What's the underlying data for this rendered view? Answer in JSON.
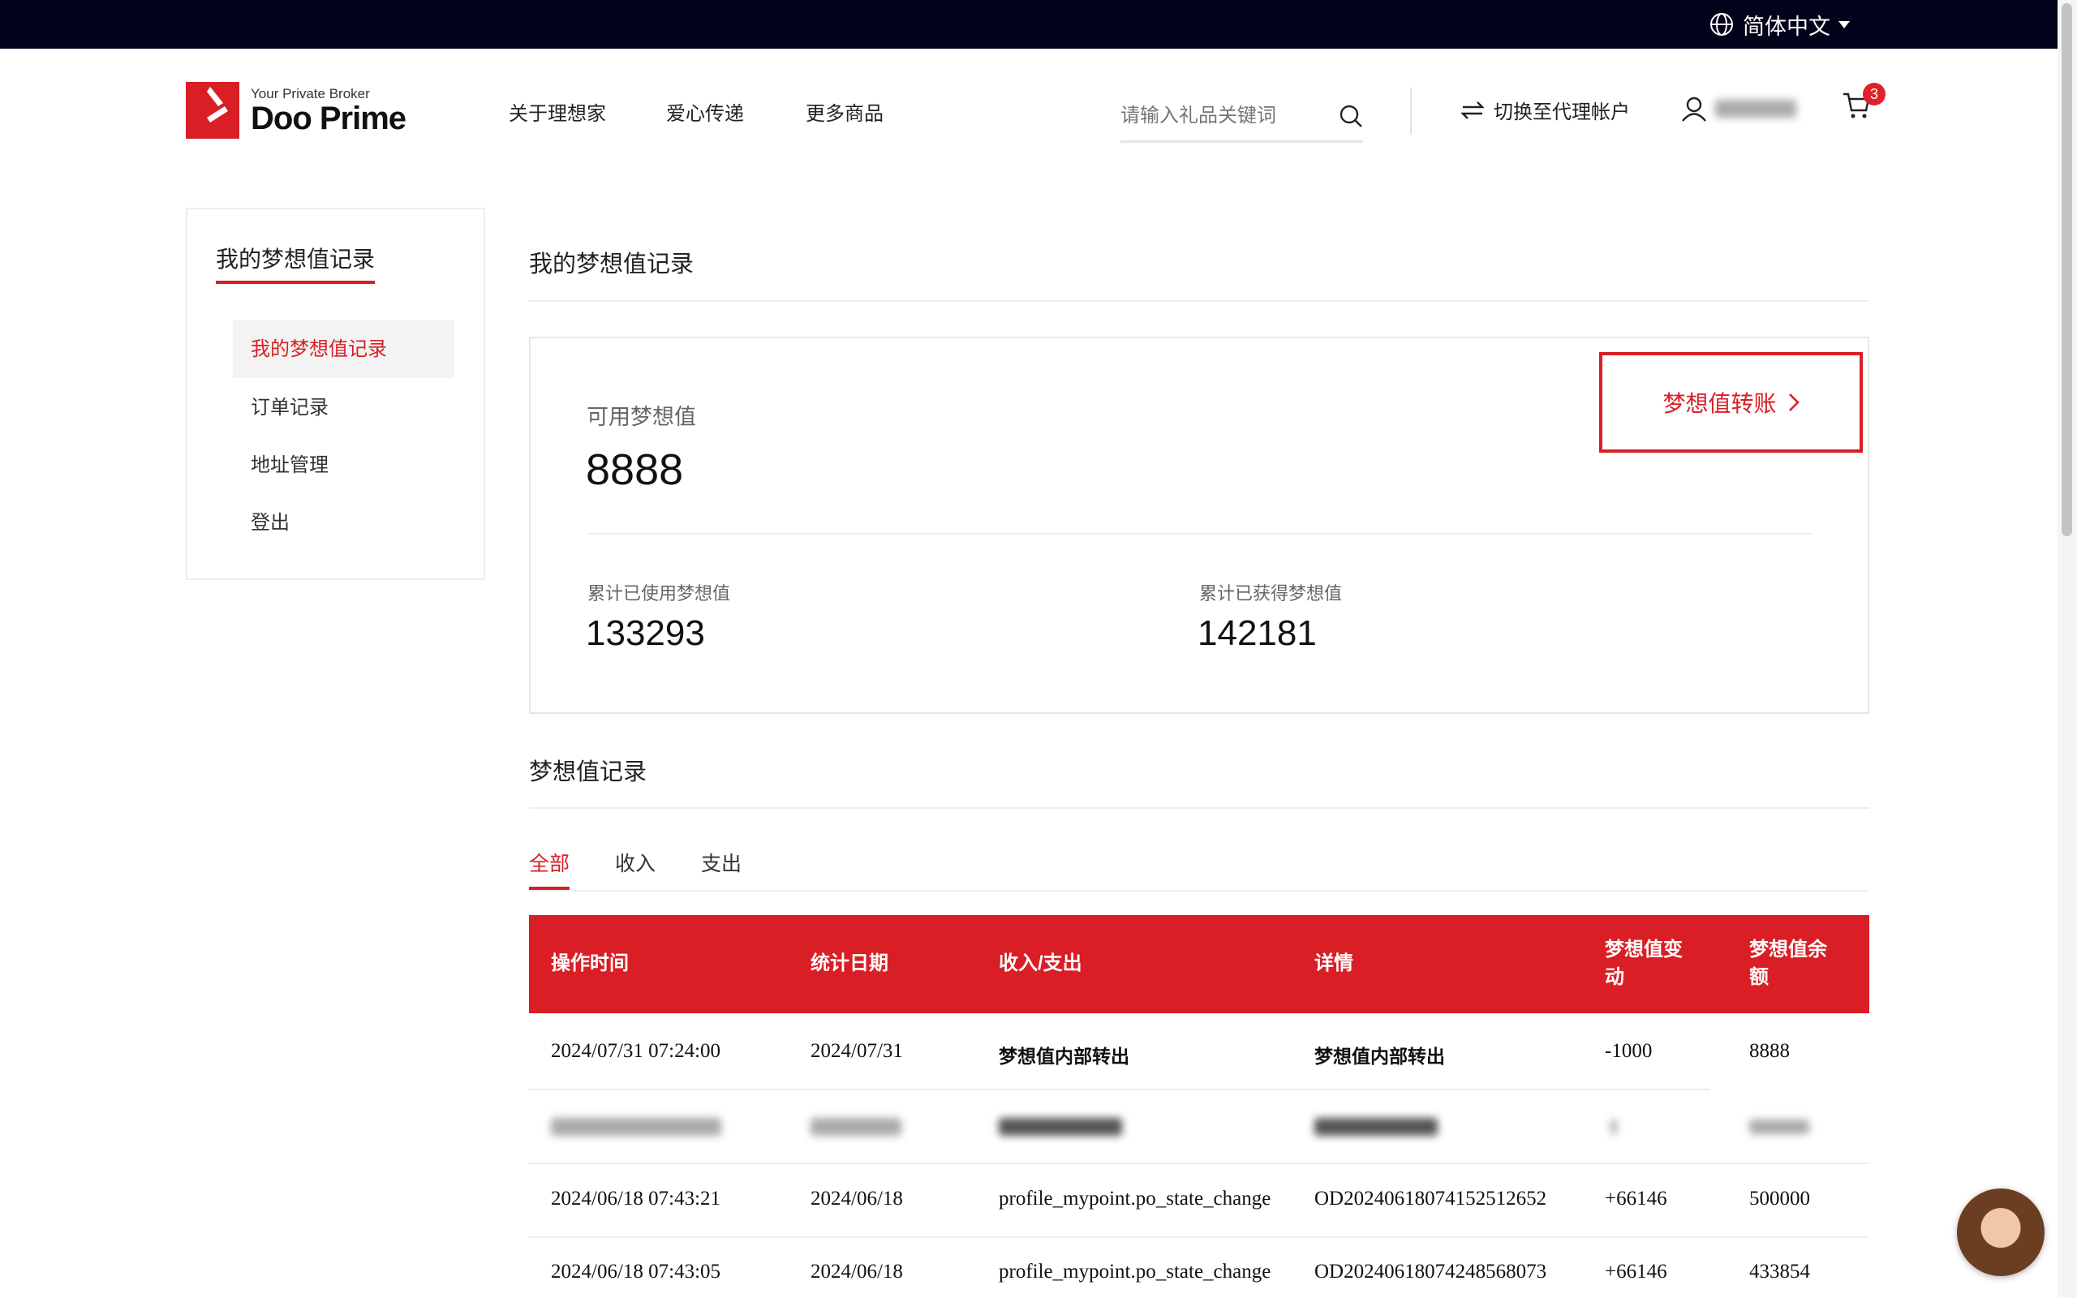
{
  "topbar": {
    "language": "简体中文"
  },
  "logo": {
    "tagline": "Your Private Broker",
    "brand": "Doo Prime"
  },
  "nav": [
    {
      "label": "关于理想家"
    },
    {
      "label": "爱心传递"
    },
    {
      "label": "更多商品"
    }
  ],
  "search": {
    "placeholder": "请输入礼品关键词"
  },
  "header": {
    "switch_account": "切换至代理帐户",
    "cart_count": "3"
  },
  "sidebar": {
    "title": "我的梦想值记录",
    "items": [
      {
        "label": "我的梦想值记录",
        "active": true
      },
      {
        "label": "订单记录"
      },
      {
        "label": "地址管理"
      },
      {
        "label": "登出"
      }
    ]
  },
  "main": {
    "title": "我的梦想值记录",
    "available_label": "可用梦想值",
    "available_value": "8888",
    "transfer_button": "梦想值转账",
    "used_label": "累计已使用梦想值",
    "used_value": "133293",
    "earned_label": "累计已获得梦想值",
    "earned_value": "142181",
    "records_title": "梦想值记录",
    "tabs": [
      {
        "label": "全部",
        "active": true
      },
      {
        "label": "收入"
      },
      {
        "label": "支出"
      }
    ]
  },
  "table": {
    "headers": [
      "操作时间",
      "统计日期",
      "收入/支出",
      "详情",
      "梦想值变动",
      "梦想值余额"
    ],
    "rows": [
      [
        "2024/07/31 07:24:00",
        "2024/07/31",
        "梦想值内部转出",
        "梦想值内部转出",
        "-1000",
        "8888"
      ],
      [
        "2024/06/18 07:43:21",
        "2024/06/18",
        "profile_mypoint.po_state_change",
        "OD20240618074152512652",
        "+66146",
        "500000"
      ],
      [
        "2024/06/18 07:43:05",
        "2024/06/18",
        "profile_mypoint.po_state_change",
        "OD20240618074248568073",
        "+66146",
        "433854"
      ]
    ]
  },
  "colors": {
    "accent": "#d91e25",
    "topbar": "#02021a"
  }
}
